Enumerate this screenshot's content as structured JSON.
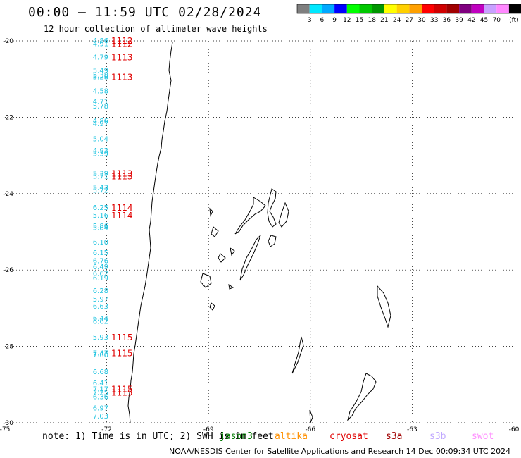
{
  "title": "00:00 — 11:59 UTC 02/28/2024",
  "subtitle": "12 hour collection of altimeter wave heights",
  "legend": {
    "colors": [
      "#7f7f7f",
      "#00e8ff",
      "#00a8ff",
      "#0000ff",
      "#00ff00",
      "#00c800",
      "#009600",
      "#ffff00",
      "#ffd000",
      "#ffa000",
      "#ff0000",
      "#d00000",
      "#a00000",
      "#800080",
      "#c000c0",
      "#c8a0ff",
      "#ff88ff",
      "#000000"
    ],
    "ticks": [
      "3",
      "6",
      "9",
      "12",
      "15",
      "18",
      "21",
      "24",
      "27",
      "30",
      "33",
      "36",
      "39",
      "42",
      "45",
      "70",
      "(ft)"
    ]
  },
  "axes": {
    "lon_labels": [
      "-75",
      "-72",
      "-69",
      "-66",
      "-63",
      "-60"
    ],
    "lat_labels": [
      "-20",
      "-22",
      "-24",
      "-26",
      "-28",
      "-30"
    ],
    "lon_range": [
      -75,
      -60
    ],
    "lat_range": [
      -20,
      -30
    ]
  },
  "note": {
    "prefix": "note: 1) Time is in UTC; 2) SWH is in feet",
    "satellites": [
      {
        "name": "jason3",
        "color": "#007a00"
      },
      {
        "name": "altika",
        "color": "#ff9000"
      },
      {
        "name": "cryosat",
        "color": "#e00000"
      },
      {
        "name": "s3a",
        "color": "#a00000"
      },
      {
        "name": "s3b",
        "color": "#c0a8ff"
      },
      {
        "name": "swot",
        "color": "#ff90ff"
      }
    ]
  },
  "credit": "NOAA/NESDIS Center for Satellite Applications and Research    14 Dec 00:09:34 UTC 2024",
  "observations": [
    {
      "lat": -20.0,
      "lon": -72.18,
      "v": "4.86"
    },
    {
      "lat": -20.08,
      "lon": -72.18,
      "v": "4.91"
    },
    {
      "lat": -20.43,
      "lon": -72.18,
      "v": "4.79"
    },
    {
      "lat": -20.78,
      "lon": -72.18,
      "v": "5.49"
    },
    {
      "lat": -20.9,
      "lon": -72.18,
      "v": "5.38"
    },
    {
      "lat": -20.95,
      "lon": -72.18,
      "v": "5.28"
    },
    {
      "lat": -21.32,
      "lon": -72.18,
      "v": "4.58"
    },
    {
      "lat": -21.6,
      "lon": -72.18,
      "v": "4.71"
    },
    {
      "lat": -21.72,
      "lon": -72.18,
      "v": "5.78"
    },
    {
      "lat": -22.1,
      "lon": -72.18,
      "v": "4.86"
    },
    {
      "lat": -22.18,
      "lon": -72.18,
      "v": "4.97"
    },
    {
      "lat": -22.57,
      "lon": -72.18,
      "v": "5.04"
    },
    {
      "lat": -22.88,
      "lon": -72.18,
      "v": "4.93"
    },
    {
      "lat": -22.96,
      "lon": -72.18,
      "v": "5.39"
    },
    {
      "lat": -23.48,
      "lon": -72.18,
      "v": "5.39"
    },
    {
      "lat": -23.55,
      "lon": -72.18,
      "v": "5.71"
    },
    {
      "lat": -23.85,
      "lon": -72.18,
      "v": "5.43"
    },
    {
      "lat": -23.92,
      "lon": -72.18,
      "v": "5.72"
    },
    {
      "lat": -24.37,
      "lon": -72.18,
      "v": "6.25"
    },
    {
      "lat": -24.58,
      "lon": -72.18,
      "v": "5.16"
    },
    {
      "lat": -24.85,
      "lon": -72.18,
      "v": "5.86"
    },
    {
      "lat": -24.9,
      "lon": -72.18,
      "v": "5.84"
    },
    {
      "lat": -25.28,
      "lon": -72.18,
      "v": "6.10"
    },
    {
      "lat": -25.55,
      "lon": -72.18,
      "v": "6.15"
    },
    {
      "lat": -25.77,
      "lon": -72.18,
      "v": "6.76"
    },
    {
      "lat": -25.92,
      "lon": -72.18,
      "v": "6.49"
    },
    {
      "lat": -26.1,
      "lon": -72.18,
      "v": "6.62"
    },
    {
      "lat": -26.22,
      "lon": -72.18,
      "v": "6.19"
    },
    {
      "lat": -26.55,
      "lon": -72.18,
      "v": "6.28"
    },
    {
      "lat": -26.77,
      "lon": -72.18,
      "v": "5.97"
    },
    {
      "lat": -26.96,
      "lon": -72.18,
      "v": "6.63"
    },
    {
      "lat": -27.27,
      "lon": -72.18,
      "v": "6.44"
    },
    {
      "lat": -27.35,
      "lon": -72.18,
      "v": "6.62"
    },
    {
      "lat": -27.77,
      "lon": -72.18,
      "v": "5.93"
    },
    {
      "lat": -28.18,
      "lon": -72.18,
      "v": "7.47"
    },
    {
      "lat": -28.23,
      "lon": -72.18,
      "v": "7.60"
    },
    {
      "lat": -28.67,
      "lon": -72.18,
      "v": "6.68"
    },
    {
      "lat": -28.97,
      "lon": -72.18,
      "v": "6.41"
    },
    {
      "lat": -29.12,
      "lon": -72.18,
      "v": "7.17"
    },
    {
      "lat": -29.22,
      "lon": -72.18,
      "v": "7.25"
    },
    {
      "lat": -29.33,
      "lon": -72.18,
      "v": "6.36"
    },
    {
      "lat": -29.62,
      "lon": -72.18,
      "v": "6.97"
    },
    {
      "lat": -29.83,
      "lon": -72.18,
      "v": "7.03"
    }
  ],
  "times": [
    {
      "lat": -20.0,
      "lon": -71.55,
      "v": "1112"
    },
    {
      "lat": -20.08,
      "lon": -71.55,
      "v": "1112"
    },
    {
      "lat": -20.43,
      "lon": -71.55,
      "v": "1113"
    },
    {
      "lat": -20.95,
      "lon": -71.55,
      "v": "1113"
    },
    {
      "lat": -23.48,
      "lon": -71.55,
      "v": "1113"
    },
    {
      "lat": -23.55,
      "lon": -71.55,
      "v": "1113"
    },
    {
      "lat": -24.37,
      "lon": -71.55,
      "v": "1114"
    },
    {
      "lat": -24.58,
      "lon": -71.55,
      "v": "1114"
    },
    {
      "lat": -27.77,
      "lon": -71.55,
      "v": "1115"
    },
    {
      "lat": -28.18,
      "lon": -71.55,
      "v": "1115"
    },
    {
      "lat": -29.12,
      "lon": -71.55,
      "v": "1115"
    },
    {
      "lat": -29.22,
      "lon": -71.55,
      "v": "1115"
    }
  ]
}
